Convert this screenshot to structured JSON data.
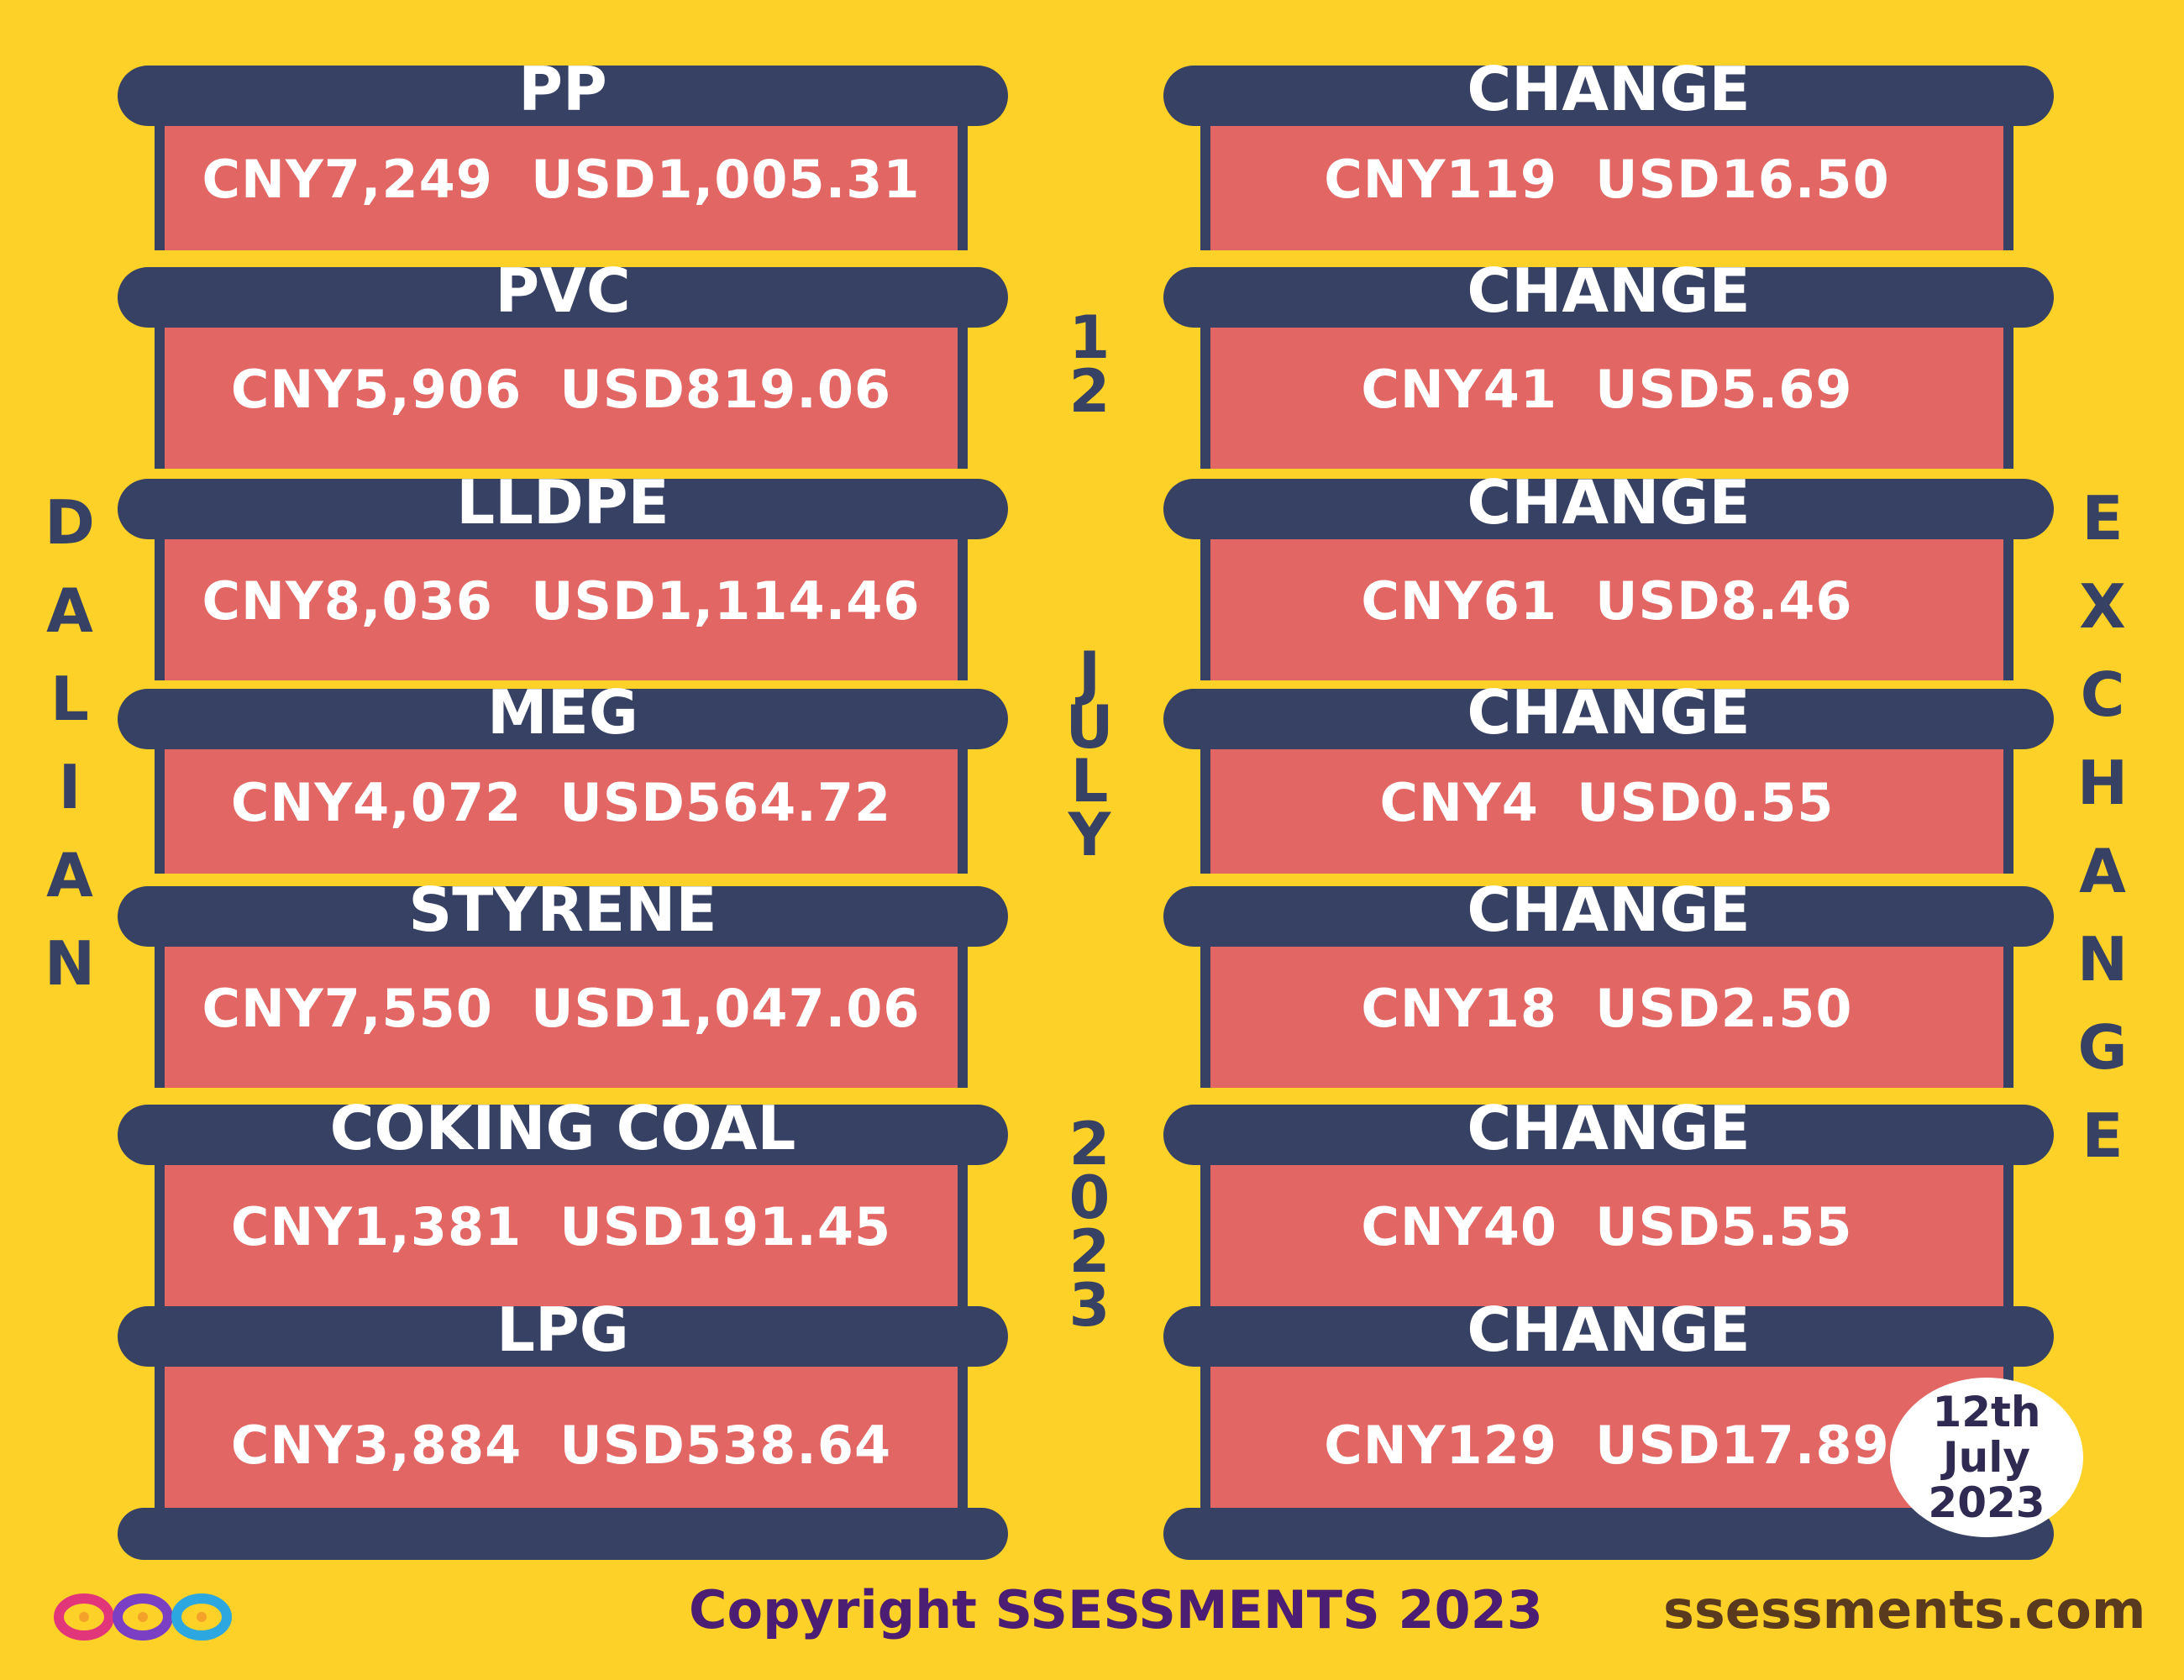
{
  "side_labels": {
    "left": [
      "D",
      "A",
      "L",
      "I",
      "A",
      "N"
    ],
    "right": [
      "E",
      "X",
      "C",
      "H",
      "A",
      "N",
      "G",
      "E"
    ]
  },
  "date_center": {
    "day": [
      "1",
      "2"
    ],
    "month": [
      "J",
      "U",
      "L",
      "Y"
    ],
    "year": [
      "2",
      "0",
      "2",
      "3"
    ]
  },
  "commodities": [
    {
      "name": "PP",
      "price": "CNY7,249  USD1,005.31",
      "change_label": "CHANGE",
      "change": "CNY119  USD16.50"
    },
    {
      "name": "PVC",
      "price": "CNY5,906  USD819.06",
      "change_label": "CHANGE",
      "change": "CNY41  USD5.69"
    },
    {
      "name": "LLDPE",
      "price": "CNY8,036  USD1,114.46",
      "change_label": "CHANGE",
      "change": "CNY61  USD8.46"
    },
    {
      "name": "MEG",
      "price": "CNY4,072  USD564.72",
      "change_label": "CHANGE",
      "change": "CNY4  USD0.55"
    },
    {
      "name": "STYRENE",
      "price": "CNY7,550  USD1,047.06",
      "change_label": "CHANGE",
      "change": "CNY18  USD2.50"
    },
    {
      "name": "COKING COAL",
      "price": "CNY1,381  USD191.45",
      "change_label": "CHANGE",
      "change": "CNY40  USD5.55"
    },
    {
      "name": "LPG",
      "price": "CNY3,884  USD538.64",
      "change_label": "CHANGE",
      "change": "CNY129  USD17.89"
    }
  ],
  "badge": [
    "12th",
    "July",
    "2023"
  ],
  "footer": {
    "copyright": "Copyright SSESSMENTS 2023",
    "website": "ssessments.com"
  },
  "colors": {
    "background": "#FDD128",
    "band": "#364164",
    "box": "#E26663"
  }
}
